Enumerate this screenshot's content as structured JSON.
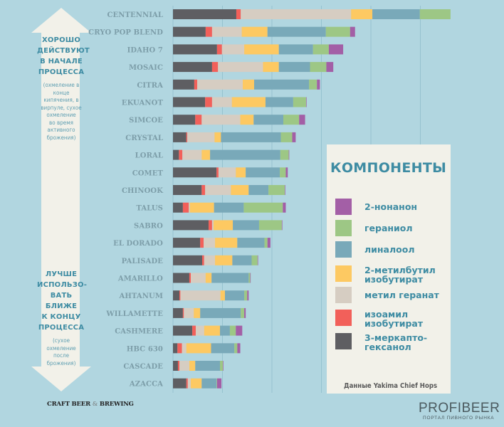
{
  "left_panel": {
    "top_heading": [
      "ХОРОШО",
      "ДЕЙСТВУЮТ",
      "В НАЧАЛЕ",
      "ПРОЦЕССА"
    ],
    "top_note": [
      "(охмеление в",
      "конце",
      "кипячения, в",
      "вирпуле, сухое",
      "охмеление",
      "во время",
      "активного",
      "брожения)"
    ],
    "bottom_heading": [
      "ЛУЧШЕ",
      "ИСПОЛЬЗО-",
      "ВАТЬ",
      "БЛИЖЕ",
      "К КОНЦУ",
      "ПРОЦЕССА"
    ],
    "bottom_note": [
      "(сухое",
      "охмеление",
      "после",
      "брожения)"
    ]
  },
  "colors": {
    "background": "#b1d6e0",
    "arrow": "#f2f1e9",
    "gridline": "#96c2cf",
    "2-нонанон": "#a35fa6",
    "гераниол": "#9dc785",
    "линалоол": "#79a9b9",
    "2-метилбутил изобутират": "#fdc962",
    "метил геранат": "#d6cdc2",
    "изоамил изобутират": "#f2605a",
    "3-меркапто-гексанол": "#5e5e62"
  },
  "chart_data": {
    "type": "bar",
    "orientation": "horizontal",
    "stacked": true,
    "title": "",
    "xlabel": "",
    "ylabel": "",
    "grid": true,
    "xlim": [
      0,
      5.6
    ],
    "categories": [
      "CENTENNIAL",
      "CRYO POP BLEND",
      "IDAHO 7",
      "MOSAIC",
      "CITRA",
      "EKUANOT",
      "SIMCOE",
      "CRYSTAL",
      "LORAL",
      "COMET",
      "CHINOOK",
      "TALUS",
      "SABRO",
      "EL DORADO",
      "PALISADE",
      "AMARILLO",
      "AHTANUM",
      "WILLAMETTE",
      "CASHMERE",
      "HBC 630",
      "CASCADE",
      "AZACCA"
    ],
    "series": [
      {
        "name": "3-меркапто-гексанол",
        "color": "#5e5e62",
        "values": [
          1.28,
          0.66,
          0.89,
          0.79,
          0.43,
          0.65,
          0.45,
          0.27,
          0.12,
          0.88,
          0.58,
          0.2,
          0.72,
          0.55,
          0.59,
          0.33,
          0.13,
          0.2,
          0.39,
          0.09,
          0.1,
          0.27
        ]
      },
      {
        "name": "изоамил изобутират",
        "color": "#f2605a",
        "values": [
          0.09,
          0.13,
          0.1,
          0.12,
          0.06,
          0.14,
          0.13,
          0.02,
          0.07,
          0.04,
          0.07,
          0.12,
          0.07,
          0.07,
          0.04,
          0.03,
          0.02,
          0.02,
          0.07,
          0.09,
          0.03,
          0.03
        ]
      },
      {
        "name": "метил геранат",
        "color": "#d6cdc2",
        "values": [
          2.23,
          0.6,
          0.45,
          0.91,
          0.92,
          0.4,
          0.78,
          0.55,
          0.39,
          0.35,
          0.52,
          0.02,
          0.03,
          0.23,
          0.22,
          0.3,
          0.81,
          0.2,
          0.17,
          0.09,
          0.2,
          0.06
        ]
      },
      {
        "name": "2-метилбутил изобутират",
        "color": "#fdc962",
        "values": [
          0.43,
          0.52,
          0.7,
          0.32,
          0.23,
          0.68,
          0.27,
          0.13,
          0.17,
          0.2,
          0.36,
          0.49,
          0.39,
          0.45,
          0.35,
          0.12,
          0.09,
          0.13,
          0.32,
          0.5,
          0.12,
          0.22
        ]
      },
      {
        "name": "линалоол",
        "color": "#79a9b9",
        "values": [
          0.96,
          1.18,
          0.69,
          0.63,
          1.11,
          0.56,
          0.6,
          1.21,
          1.42,
          0.69,
          0.4,
          0.6,
          0.53,
          0.55,
          0.39,
          0.75,
          0.39,
          0.82,
          0.2,
          0.47,
          0.5,
          0.3
        ]
      },
      {
        "name": "гераниол",
        "color": "#9dc785",
        "values": [
          0.62,
          0.49,
          0.32,
          0.33,
          0.16,
          0.26,
          0.32,
          0.23,
          0.17,
          0.12,
          0.33,
          0.79,
          0.46,
          0.06,
          0.12,
          0.03,
          0.06,
          0.07,
          0.12,
          0.06,
          0.06,
          0.01
        ]
      },
      {
        "name": "2-нонанон",
        "color": "#a35fa6",
        "values": [
          0,
          0.1,
          0.29,
          0.14,
          0.06,
          0.01,
          0.12,
          0.07,
          0.01,
          0.04,
          0.01,
          0.06,
          0.01,
          0.06,
          0.01,
          0.01,
          0.03,
          0.03,
          0.13,
          0.06,
          0.01,
          0.09
        ]
      }
    ]
  },
  "legend": {
    "title": "КОМПОНЕНТЫ",
    "items": [
      {
        "label": [
          "2-нонанон"
        ],
        "color": "#a35fa6"
      },
      {
        "label": [
          "гераниол"
        ],
        "color": "#9dc785"
      },
      {
        "label": [
          "линалоол"
        ],
        "color": "#79a9b9"
      },
      {
        "label": [
          "2-метилбутил",
          "изобутират"
        ],
        "color": "#fdc962"
      },
      {
        "label": [
          "метил геранат"
        ],
        "color": "#d6cdc2"
      },
      {
        "label": [
          "изоамил",
          "изобутират"
        ],
        "color": "#f2605a"
      },
      {
        "label": [
          "3-меркапто-",
          "гексанол"
        ],
        "color": "#5e5e62"
      }
    ],
    "source": "Данные Yakima Chief Hops"
  },
  "footer": {
    "craft_logo_left": "CRAFT BEER ",
    "craft_logo_amp": "&",
    "craft_logo_right": " BREWING",
    "brand": "PROFIBEER",
    "brand_tagline": "ПОРТАЛ ПИВНОГО РЫНКА"
  }
}
